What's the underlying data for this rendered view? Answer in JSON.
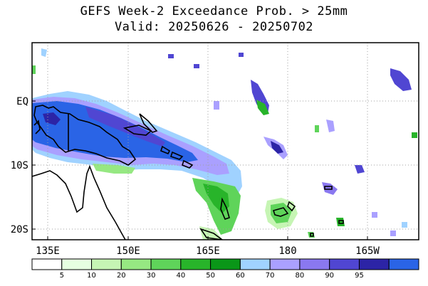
{
  "title": "GEFS Week-2 Exceedance Prob. > 25mm",
  "subtitle": "Valid: 20250626 - 20250702",
  "axes": {
    "x_ticks": [
      "135E",
      "150E",
      "165E",
      "180",
      "165W"
    ],
    "y_ticks": [
      "EQ",
      "10S",
      "20S"
    ]
  },
  "colorbar": {
    "thresholds": [
      "5",
      "10",
      "20",
      "30",
      "40",
      "50",
      "60",
      "70",
      "80",
      "90",
      "95"
    ],
    "colors": [
      "#ffffff",
      "#e6ffe1",
      "#c6f5b4",
      "#96e882",
      "#5fd45a",
      "#28b42a",
      "#0a9618",
      "#a0d2ff",
      "#aaa0ff",
      "#8a78f0",
      "#5046d2",
      "#2c24a6",
      "#2a64e6"
    ]
  },
  "legend_colors": {
    "coast": "#000000",
    "grid": "#a0a0a0"
  }
}
